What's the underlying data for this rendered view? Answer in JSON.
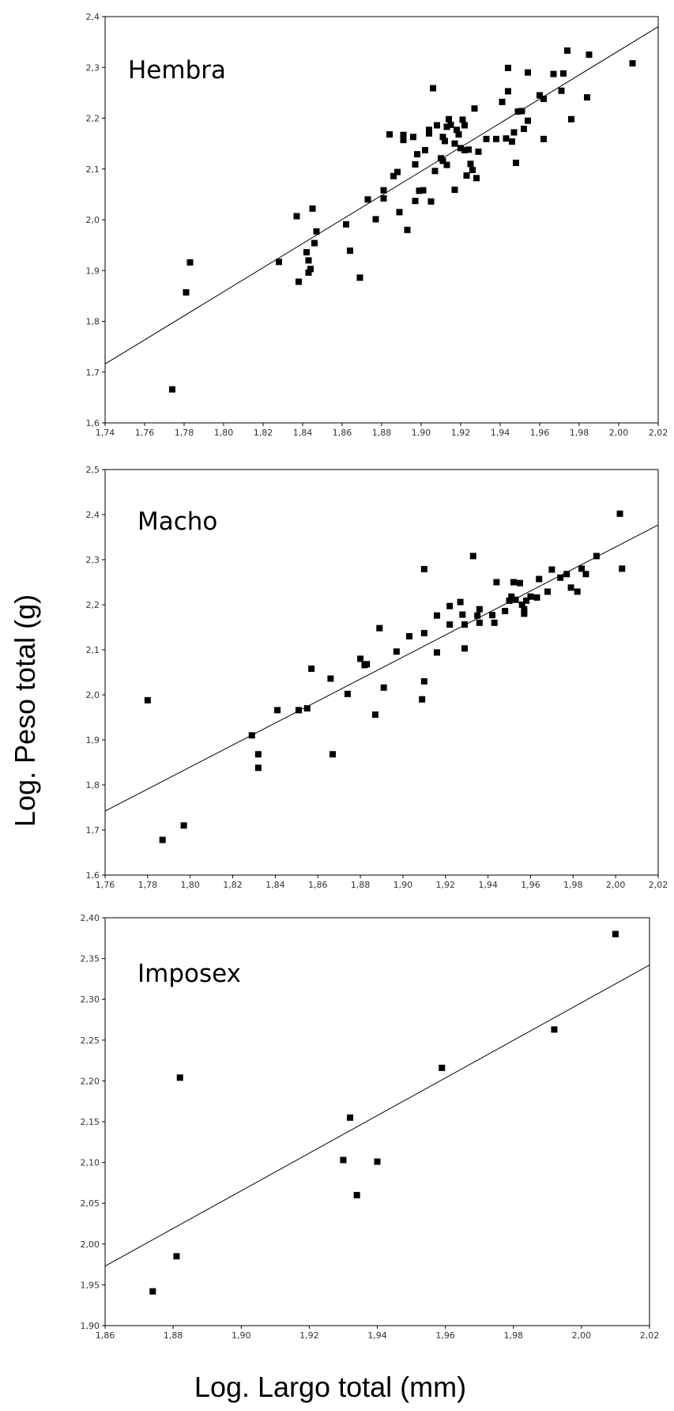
{
  "figure": {
    "ylabel": "Log. Peso total (g)",
    "xlabel": "Log.  Largo total (mm)"
  },
  "colors": {
    "point": "#000000",
    "line": "#000000",
    "frame": "#000000"
  },
  "chart_data": [
    {
      "type": "scatter",
      "title": "Hembra",
      "xlim": [
        1.74,
        2.02
      ],
      "ylim": [
        1.6,
        2.4
      ],
      "xticks": [
        "1,74",
        "1,76",
        "1,78",
        "1,80",
        "1,82",
        "1,84",
        "1,86",
        "1,88",
        "1,90",
        "1,92",
        "1,94",
        "1,96",
        "1,98",
        "2,00",
        "2,02"
      ],
      "yticks": [
        "1,6",
        "1,7",
        "1,8",
        "1,9",
        "2,0",
        "2,1",
        "2,2",
        "2,3",
        "2,4"
      ],
      "regression": {
        "x": [
          1.74,
          2.02
        ],
        "y": [
          1.716,
          2.38
        ]
      },
      "points": [
        [
          1.774,
          1.666
        ],
        [
          1.781,
          1.857
        ],
        [
          1.783,
          1.916
        ],
        [
          1.828,
          1.917
        ],
        [
          1.837,
          2.007
        ],
        [
          1.838,
          1.878
        ],
        [
          1.842,
          1.936
        ],
        [
          1.843,
          1.92
        ],
        [
          1.843,
          1.896
        ],
        [
          1.844,
          1.903
        ],
        [
          1.845,
          2.022
        ],
        [
          1.846,
          1.954
        ],
        [
          1.847,
          1.977
        ],
        [
          1.862,
          1.991
        ],
        [
          1.864,
          1.939
        ],
        [
          1.869,
          1.886
        ],
        [
          1.873,
          2.04
        ],
        [
          1.877,
          2.001
        ],
        [
          1.881,
          2.042
        ],
        [
          1.881,
          2.058
        ],
        [
          1.884,
          2.168
        ],
        [
          1.886,
          2.086
        ],
        [
          1.888,
          2.094
        ],
        [
          1.889,
          2.015
        ],
        [
          1.891,
          2.167
        ],
        [
          1.891,
          2.157
        ],
        [
          1.893,
          1.98
        ],
        [
          1.896,
          2.163
        ],
        [
          1.897,
          2.109
        ],
        [
          1.897,
          2.037
        ],
        [
          1.898,
          2.129
        ],
        [
          1.899,
          2.057
        ],
        [
          1.901,
          2.058
        ],
        [
          1.902,
          2.137
        ],
        [
          1.904,
          2.177
        ],
        [
          1.904,
          2.17
        ],
        [
          1.905,
          2.036
        ],
        [
          1.906,
          2.259
        ],
        [
          1.907,
          2.096
        ],
        [
          1.908,
          2.186
        ],
        [
          1.91,
          2.121
        ],
        [
          1.911,
          2.116
        ],
        [
          1.911,
          2.163
        ],
        [
          1.912,
          2.155
        ],
        [
          1.913,
          2.183
        ],
        [
          1.913,
          2.108
        ],
        [
          1.914,
          2.198
        ],
        [
          1.915,
          2.187
        ],
        [
          1.917,
          2.15
        ],
        [
          1.917,
          2.059
        ],
        [
          1.918,
          2.177
        ],
        [
          1.919,
          2.168
        ],
        [
          1.92,
          2.141
        ],
        [
          1.921,
          2.197
        ],
        [
          1.922,
          2.137
        ],
        [
          1.922,
          2.186
        ],
        [
          1.923,
          2.087
        ],
        [
          1.924,
          2.138
        ],
        [
          1.925,
          2.11
        ],
        [
          1.926,
          2.098
        ],
        [
          1.927,
          2.219
        ],
        [
          1.928,
          2.082
        ],
        [
          1.929,
          2.134
        ],
        [
          1.933,
          2.159
        ],
        [
          1.938,
          2.159
        ],
        [
          1.941,
          2.232
        ],
        [
          1.943,
          2.16
        ],
        [
          1.944,
          2.299
        ],
        [
          1.944,
          2.253
        ],
        [
          1.946,
          2.154
        ],
        [
          1.947,
          2.172
        ],
        [
          1.948,
          2.112
        ],
        [
          1.949,
          2.213
        ],
        [
          1.951,
          2.214
        ],
        [
          1.952,
          2.179
        ],
        [
          1.954,
          2.195
        ],
        [
          1.954,
          2.29
        ],
        [
          1.96,
          2.245
        ],
        [
          1.962,
          2.238
        ],
        [
          1.962,
          2.159
        ],
        [
          1.967,
          2.287
        ],
        [
          1.971,
          2.254
        ],
        [
          1.972,
          2.288
        ],
        [
          1.974,
          2.333
        ],
        [
          1.976,
          2.198
        ],
        [
          1.984,
          2.241
        ],
        [
          1.985,
          2.325
        ],
        [
          2.007,
          2.308
        ]
      ]
    },
    {
      "type": "scatter",
      "title": "Macho",
      "xlim": [
        1.76,
        2.02
      ],
      "ylim": [
        1.6,
        2.5
      ],
      "xticks": [
        "1,76",
        "1,78",
        "1,80",
        "1,82",
        "1,84",
        "1,86",
        "1,88",
        "1,90",
        "1,92",
        "1,94",
        "1,96",
        "1,98",
        "2,00",
        "2,02"
      ],
      "yticks": [
        "1,6",
        "1,7",
        "1,8",
        "1,9",
        "2,0",
        "2,1",
        "2,2",
        "2,3",
        "2,4",
        "2,5"
      ],
      "regression": {
        "x": [
          1.76,
          2.02
        ],
        "y": [
          1.742,
          2.377
        ]
      },
      "points": [
        [
          1.78,
          1.988
        ],
        [
          1.787,
          1.678
        ],
        [
          1.797,
          1.71
        ],
        [
          1.829,
          1.91
        ],
        [
          1.832,
          1.868
        ],
        [
          1.832,
          1.838
        ],
        [
          1.841,
          1.966
        ],
        [
          1.851,
          1.966
        ],
        [
          1.855,
          1.97
        ],
        [
          1.857,
          2.058
        ],
        [
          1.866,
          2.036
        ],
        [
          1.867,
          1.868
        ],
        [
          1.874,
          2.002
        ],
        [
          1.88,
          2.08
        ],
        [
          1.882,
          2.066
        ],
        [
          1.883,
          2.068
        ],
        [
          1.887,
          1.956
        ],
        [
          1.889,
          2.148
        ],
        [
          1.891,
          2.016
        ],
        [
          1.897,
          2.096
        ],
        [
          1.903,
          2.13
        ],
        [
          1.909,
          1.99
        ],
        [
          1.91,
          2.03
        ],
        [
          1.91,
          2.137
        ],
        [
          1.91,
          2.279
        ],
        [
          1.916,
          2.176
        ],
        [
          1.916,
          2.094
        ],
        [
          1.922,
          2.197
        ],
        [
          1.922,
          2.156
        ],
        [
          1.927,
          2.206
        ],
        [
          1.928,
          2.178
        ],
        [
          1.929,
          2.156
        ],
        [
          1.929,
          2.103
        ],
        [
          1.933,
          2.308
        ],
        [
          1.935,
          2.176
        ],
        [
          1.936,
          2.19
        ],
        [
          1.936,
          2.16
        ],
        [
          1.942,
          2.177
        ],
        [
          1.943,
          2.16
        ],
        [
          1.944,
          2.25
        ],
        [
          1.948,
          2.186
        ],
        [
          1.95,
          2.209
        ],
        [
          1.951,
          2.218
        ],
        [
          1.952,
          2.25
        ],
        [
          1.953,
          2.211
        ],
        [
          1.955,
          2.248
        ],
        [
          1.956,
          2.2
        ],
        [
          1.957,
          2.19
        ],
        [
          1.957,
          2.18
        ],
        [
          1.958,
          2.209
        ],
        [
          1.96,
          2.218
        ],
        [
          1.963,
          2.216
        ],
        [
          1.964,
          2.257
        ],
        [
          1.968,
          2.229
        ],
        [
          1.97,
          2.278
        ],
        [
          1.974,
          2.26
        ],
        [
          1.977,
          2.268
        ],
        [
          1.979,
          2.238
        ],
        [
          1.982,
          2.229
        ],
        [
          1.984,
          2.28
        ],
        [
          1.986,
          2.268
        ],
        [
          1.991,
          2.308
        ],
        [
          2.002,
          2.402
        ],
        [
          2.003,
          2.28
        ]
      ]
    },
    {
      "type": "scatter",
      "title": "Imposex",
      "xlim": [
        1.86,
        2.02
      ],
      "ylim": [
        1.9,
        2.4
      ],
      "xticks": [
        "1,86",
        "1,88",
        "1,90",
        "1,92",
        "1,94",
        "1,96",
        "1,98",
        "2,00",
        "2,02"
      ],
      "yticks": [
        "1,90",
        "1,95",
        "2,00",
        "2,05",
        "2,10",
        "2,15",
        "2,20",
        "2,25",
        "2,30",
        "2,35",
        "2,40"
      ],
      "regression": {
        "x": [
          1.86,
          2.02
        ],
        "y": [
          1.973,
          2.342
        ]
      },
      "points": [
        [
          1.874,
          1.942
        ],
        [
          1.881,
          1.985
        ],
        [
          1.882,
          2.204
        ],
        [
          1.93,
          2.103
        ],
        [
          1.932,
          2.155
        ],
        [
          1.934,
          2.06
        ],
        [
          1.94,
          2.101
        ],
        [
          1.959,
          2.216
        ],
        [
          1.992,
          2.263
        ],
        [
          2.01,
          2.38
        ]
      ]
    }
  ]
}
